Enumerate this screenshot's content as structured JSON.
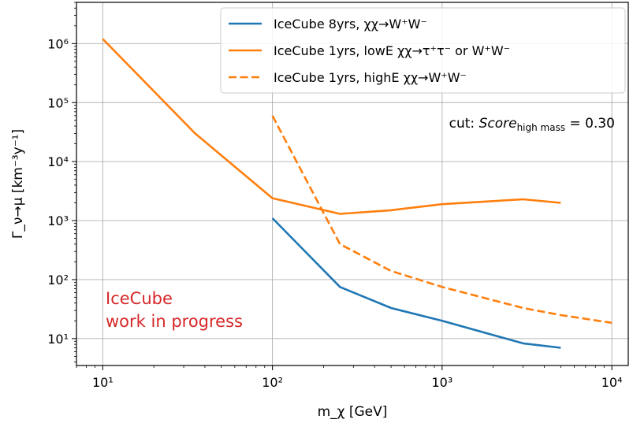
{
  "chart_data": {
    "type": "line",
    "xlabel": "m_χ [GeV]",
    "ylabel": "Γ_ν→μ [km⁻³y⁻¹]",
    "x_scale": "log",
    "y_scale": "log",
    "xlim": [
      7,
      12500
    ],
    "ylim": [
      3.5,
      5000000
    ],
    "grid": true,
    "legend_position": "top-right",
    "x_ticks": [
      {
        "value": 10,
        "label": "10¹"
      },
      {
        "value": 100,
        "label": "10²"
      },
      {
        "value": 1000,
        "label": "10³"
      },
      {
        "value": 10000,
        "label": "10⁴"
      }
    ],
    "y_ticks": [
      {
        "value": 10,
        "label": "10¹"
      },
      {
        "value": 100,
        "label": "10²"
      },
      {
        "value": 1000,
        "label": "10³"
      },
      {
        "value": 10000,
        "label": "10⁴"
      },
      {
        "value": 100000,
        "label": "10⁵"
      },
      {
        "value": 1000000,
        "label": "10⁶"
      }
    ],
    "series": [
      {
        "name": "IceCube 8yrs, χχ→W⁺W⁻",
        "color": "#1f77b4",
        "dash": "solid",
        "x": [
          100,
          250,
          500,
          1000,
          3000,
          5000
        ],
        "y": [
          1100,
          75,
          33,
          20,
          8.3,
          7.0
        ]
      },
      {
        "name": "IceCube 1yrs, lowE χχ→τ⁺τ⁻  or W⁺W⁻",
        "color": "#ff7f0e",
        "dash": "solid",
        "x": [
          10,
          35,
          100,
          250,
          500,
          1000,
          3000,
          5000
        ],
        "y": [
          1200000,
          30000,
          2400,
          1300,
          1500,
          1900,
          2300,
          2000
        ]
      },
      {
        "name": "IceCube 1yrs, highE χχ→W⁺W⁻",
        "color": "#ff7f0e",
        "dash": "dashed",
        "x": [
          100,
          250,
          500,
          1000,
          3000,
          5000,
          10000
        ],
        "y": [
          60000,
          400,
          140,
          75,
          33,
          25,
          18.5
        ]
      }
    ],
    "annotations": {
      "cut_prefix": "cut: ",
      "cut_score": "Score",
      "cut_subscript": "high mass",
      "cut_value": " = 0.30",
      "wip_line1": "IceCube",
      "wip_line2": "work in progress"
    }
  }
}
